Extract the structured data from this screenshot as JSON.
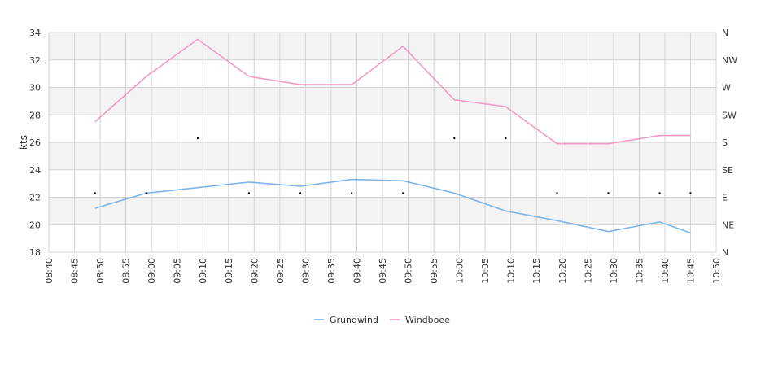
{
  "chart_data": {
    "type": "line",
    "ylabel": "kts",
    "ylim": [
      18,
      34
    ],
    "yticks": [
      18,
      20,
      22,
      24,
      26,
      28,
      30,
      32,
      34
    ],
    "y2_labels": [
      "N",
      "NE",
      "E",
      "SE",
      "S",
      "SW",
      "W",
      "NW",
      "N"
    ],
    "x_ticks": [
      "08:40",
      "08:45",
      "08:50",
      "08:55",
      "09:00",
      "09:05",
      "09:10",
      "09:15",
      "09:20",
      "09:25",
      "09:30",
      "09:35",
      "09:40",
      "09:45",
      "09:50",
      "09:55",
      "10:00",
      "10:05",
      "10:10",
      "10:15",
      "10:20",
      "10:25",
      "10:30",
      "10:35",
      "10:40",
      "10:45",
      "10:50"
    ],
    "grid": true,
    "legend_position": "bottom",
    "colors": {
      "band": "#f3f3f3",
      "grid": "#d4d4d4",
      "grundwind": "#7cb5ec",
      "windboee": "#f29ac5",
      "direction": "#000000"
    },
    "series": [
      {
        "name": "Grundwind",
        "x": [
          "08:49",
          "08:59",
          "09:09",
          "09:19",
          "09:29",
          "09:39",
          "09:49",
          "09:59",
          "10:09",
          "10:19",
          "10:29",
          "10:39",
          "10:45"
        ],
        "values": [
          21.2,
          22.3,
          22.7,
          23.1,
          22.8,
          23.3,
          23.2,
          22.3,
          21.0,
          20.3,
          19.5,
          20.2,
          19.4
        ]
      },
      {
        "name": "Windboee",
        "x": [
          "08:49",
          "08:59",
          "09:09",
          "09:19",
          "09:29",
          "09:39",
          "09:49",
          "09:59",
          "10:09",
          "10:19",
          "10:29",
          "10:39",
          "10:45"
        ],
        "values": [
          27.5,
          30.8,
          33.5,
          30.8,
          30.2,
          30.2,
          33.0,
          29.1,
          28.6,
          25.9,
          25.9,
          26.5,
          26.5
        ]
      }
    ],
    "direction_points": {
      "x": [
        "08:49",
        "08:59",
        "09:09",
        "09:19",
        "09:29",
        "09:39",
        "09:49",
        "09:59",
        "10:09",
        "10:19",
        "10:29",
        "10:39",
        "10:45"
      ],
      "values": [
        "E",
        "E",
        "S",
        "E",
        "E",
        "E",
        "E",
        "S",
        "S",
        "E",
        "E",
        "E",
        "E"
      ]
    }
  }
}
